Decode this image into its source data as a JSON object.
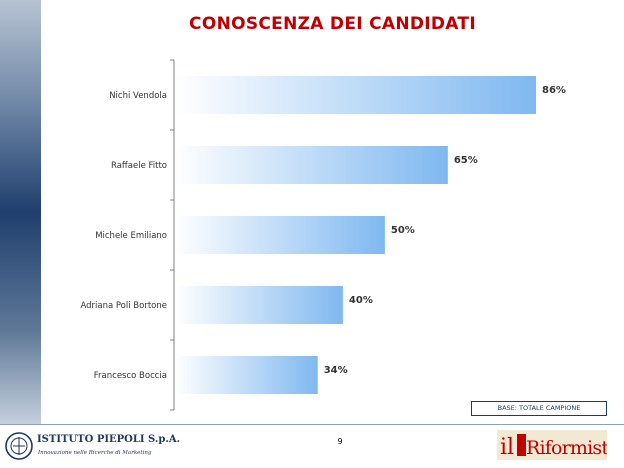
{
  "title": "CONOSCENZA DEI CANDIDATI",
  "chart_data": {
    "type": "bar",
    "orientation": "horizontal",
    "categories": [
      "Nichi Vendola",
      "Raffaele Fitto",
      "Michele Emiliano",
      "Adriana Poli Bortone",
      "Francesco Boccia"
    ],
    "values": [
      86,
      65,
      50,
      40,
      34
    ],
    "value_labels": [
      "86%",
      "65%",
      "50%",
      "40%",
      "34%"
    ],
    "xlim": [
      0,
      100
    ],
    "grid": false,
    "legend": "none",
    "bar_color_light": "#ffffff",
    "bar_color_dark": "#7fb8f0"
  },
  "base_note": "BASE: TOTALE CAMPIONE",
  "page_number": "9",
  "footer": {
    "institute_name": "ISTITUTO PIEPOLI S.p.A.",
    "institute_tagline": "Innovazione nelle Ricerche di Marketing",
    "newspaper_logo_text": "il Riformista",
    "navy": "#1f3864",
    "red": "#c00000"
  }
}
